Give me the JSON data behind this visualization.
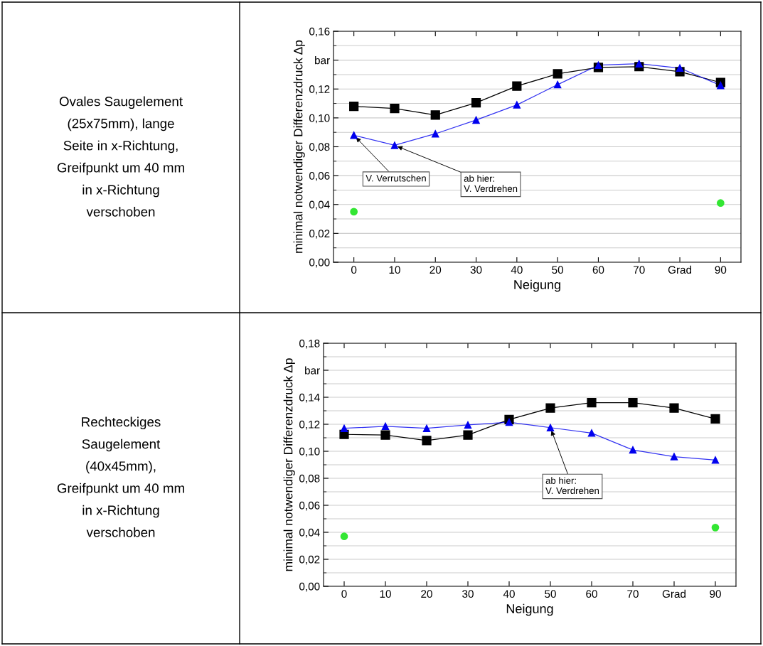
{
  "chart_data": [
    {
      "type": "other",
      "title": "Ovales Saugelement\n(25x75mm), lange\nSeite in x-Richtung,\nGreifpunkt um 40 mm\nin x-Richtung\nverschoben"
    },
    {
      "type": "line",
      "xlabel": "Neigung",
      "ylabel": "minimal notwendiger Differenzdruck Δp",
      "x": [
        0,
        10,
        20,
        30,
        40,
        50,
        60,
        70,
        80,
        90
      ],
      "series": [
        {
          "color": "#000000",
          "marker": "square",
          "values": [
            0.108,
            0.1065,
            0.102,
            0.1105,
            0.122,
            0.1305,
            0.135,
            0.1355,
            0.132,
            0.1245
          ]
        },
        {
          "color": "#0000ee",
          "marker": "triangle",
          "values": [
            0.088,
            0.081,
            0.089,
            0.0985,
            0.109,
            0.123,
            0.1365,
            0.1375,
            0.1345,
            0.1225
          ]
        },
        {
          "type": "scatter",
          "color": "#33e633",
          "marker": "circle",
          "values": [
            0.035,
            null,
            null,
            null,
            null,
            null,
            null,
            null,
            null,
            0.041
          ]
        }
      ],
      "annotations": [
        {
          "text": "V. Verrutschen",
          "x": 0,
          "y": 0.088
        },
        {
          "text": "ab hier:\nV. Verdrehen",
          "x": 10,
          "y": 0.081
        }
      ],
      "xlim": [
        -5,
        95
      ],
      "xticks": [
        0,
        10,
        20,
        30,
        40,
        50,
        60,
        70,
        {
          "value": 80,
          "label": "Grad"
        },
        90
      ],
      "ylim": [
        0,
        0.16
      ],
      "yticks": [
        {
          "value": 0,
          "label": "0,00"
        },
        {
          "value": 0.02,
          "label": "0,02"
        },
        {
          "value": 0.04,
          "label": "0,04"
        },
        {
          "value": 0.06,
          "label": "0,06"
        },
        {
          "value": 0.08,
          "label": "0,08"
        },
        {
          "value": 0.1,
          "label": "0,10"
        },
        {
          "value": 0.12,
          "label": "0,12"
        },
        {
          "value": 0.14,
          "label": "bar"
        },
        {
          "value": 0.16,
          "label": "0,16"
        }
      ],
      "grid": "y",
      "legend": false
    },
    {
      "type": "other",
      "title": "Rechteckiges\nSaugelement\n(40x45mm),\nGreifpunkt um 40 mm\nin x-Richtung\nverschoben"
    },
    {
      "type": "line",
      "xlabel": "Neigung",
      "ylabel": "minimal notwendiger Differenzdruck Δp",
      "x": [
        0,
        10,
        20,
        30,
        40,
        50,
        60,
        70,
        80,
        90
      ],
      "series": [
        {
          "color": "#000000",
          "marker": "square",
          "values": [
            0.1125,
            0.112,
            0.108,
            0.112,
            0.1235,
            0.132,
            0.136,
            0.136,
            0.132,
            0.124
          ]
        },
        {
          "color": "#0000ee",
          "marker": "triangle",
          "values": [
            0.117,
            0.1185,
            0.117,
            0.1195,
            0.1215,
            0.1175,
            0.1135,
            0.101,
            0.096,
            0.0935
          ]
        },
        {
          "type": "scatter",
          "color": "#33e633",
          "marker": "circle",
          "values": [
            0.037,
            null,
            null,
            null,
            null,
            null,
            null,
            null,
            null,
            0.0435
          ]
        }
      ],
      "annotations": [
        {
          "text": "ab hier:\nV. Verdrehen",
          "x": 50,
          "y": 0.1175
        }
      ],
      "xlim": [
        -5,
        95
      ],
      "xticks": [
        0,
        10,
        20,
        30,
        40,
        50,
        60,
        70,
        {
          "value": 80,
          "label": "Grad"
        },
        90
      ],
      "ylim": [
        0,
        0.18
      ],
      "yticks": [
        {
          "value": 0,
          "label": "0,00"
        },
        {
          "value": 0.02,
          "label": "0,02"
        },
        {
          "value": 0.04,
          "label": "0,04"
        },
        {
          "value": 0.06,
          "label": "0,06"
        },
        {
          "value": 0.08,
          "label": "0,08"
        },
        {
          "value": 0.1,
          "label": "0,10"
        },
        {
          "value": 0.12,
          "label": "0,12"
        },
        {
          "value": 0.14,
          "label": "0,14"
        },
        {
          "value": 0.16,
          "label": "bar"
        },
        {
          "value": 0.18,
          "label": "0,18"
        }
      ],
      "grid": "y",
      "legend": false
    }
  ]
}
